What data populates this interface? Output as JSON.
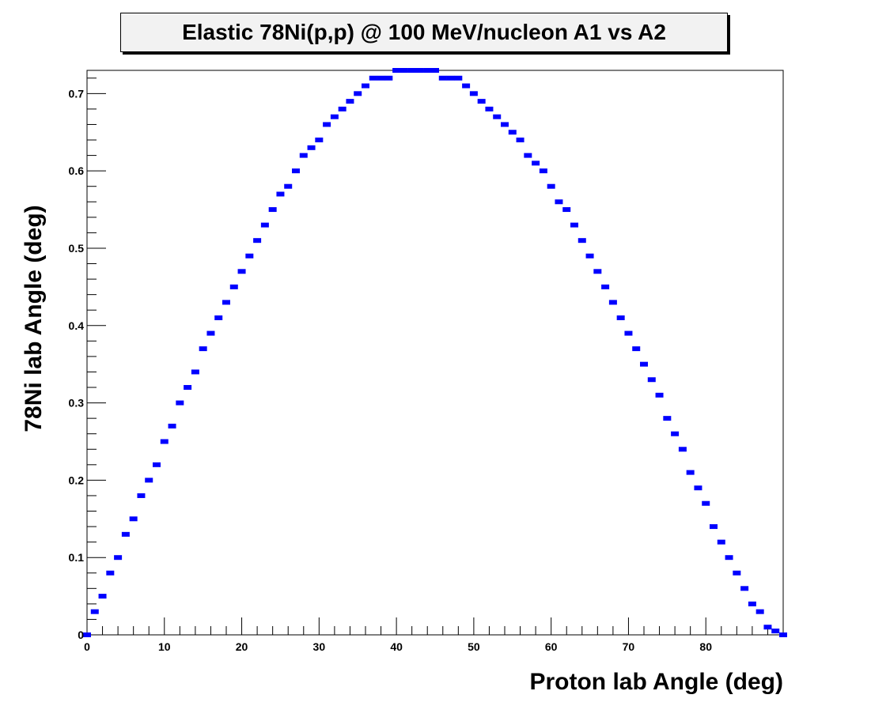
{
  "chart_data": {
    "type": "scatter",
    "title": "Elastic 78Ni(p,p) @ 100 MeV/nucleon A1 vs A2",
    "xlabel": "Proton lab Angle (deg)",
    "ylabel": "78Ni lab Angle (deg)",
    "xlim": [
      0,
      90
    ],
    "ylim": [
      0,
      0.73
    ],
    "x_ticks": [
      "0",
      "10",
      "20",
      "30",
      "40",
      "50",
      "60",
      "70",
      "80"
    ],
    "y_ticks": [
      "0",
      "0.1",
      "0.2",
      "0.3",
      "0.4",
      "0.5",
      "0.6",
      "0.7"
    ],
    "grid": false,
    "marker_color": "#0000ff",
    "series": [
      {
        "x": [
          0,
          1,
          2,
          3,
          4,
          5,
          6,
          7,
          8,
          9,
          10,
          11,
          12,
          13,
          14,
          15,
          16,
          17,
          18,
          19,
          20,
          21,
          22,
          23,
          24,
          25,
          26,
          27,
          28,
          29,
          30,
          31,
          32,
          33,
          34,
          35,
          36,
          37,
          38,
          39,
          40,
          41,
          42,
          43,
          44,
          45,
          46,
          47,
          48,
          49,
          50,
          51,
          52,
          53,
          54,
          55,
          56,
          57,
          58,
          59,
          60,
          61,
          62,
          63,
          64,
          65,
          66,
          67,
          68,
          69,
          70,
          71,
          72,
          73,
          74,
          75,
          76,
          77,
          78,
          79,
          80,
          81,
          82,
          83,
          84,
          85,
          86,
          87,
          88,
          89,
          90
        ],
        "y": [
          0,
          0.03,
          0.05,
          0.08,
          0.1,
          0.13,
          0.15,
          0.18,
          0.2,
          0.22,
          0.25,
          0.27,
          0.3,
          0.32,
          0.34,
          0.37,
          0.39,
          0.41,
          0.43,
          0.45,
          0.47,
          0.49,
          0.51,
          0.53,
          0.55,
          0.57,
          0.58,
          0.6,
          0.62,
          0.63,
          0.64,
          0.66,
          0.67,
          0.68,
          0.69,
          0.7,
          0.71,
          0.72,
          0.72,
          0.72,
          0.73,
          0.73,
          0.73,
          0.73,
          0.73,
          0.73,
          0.72,
          0.72,
          0.72,
          0.71,
          0.7,
          0.69,
          0.68,
          0.67,
          0.66,
          0.65,
          0.64,
          0.62,
          0.61,
          0.6,
          0.58,
          0.56,
          0.55,
          0.53,
          0.51,
          0.49,
          0.47,
          0.45,
          0.43,
          0.41,
          0.39,
          0.37,
          0.35,
          0.33,
          0.31,
          0.28,
          0.26,
          0.24,
          0.21,
          0.19,
          0.17,
          0.14,
          0.12,
          0.1,
          0.08,
          0.06,
          0.04,
          0.03,
          0.01,
          0.005,
          0
        ]
      }
    ]
  }
}
